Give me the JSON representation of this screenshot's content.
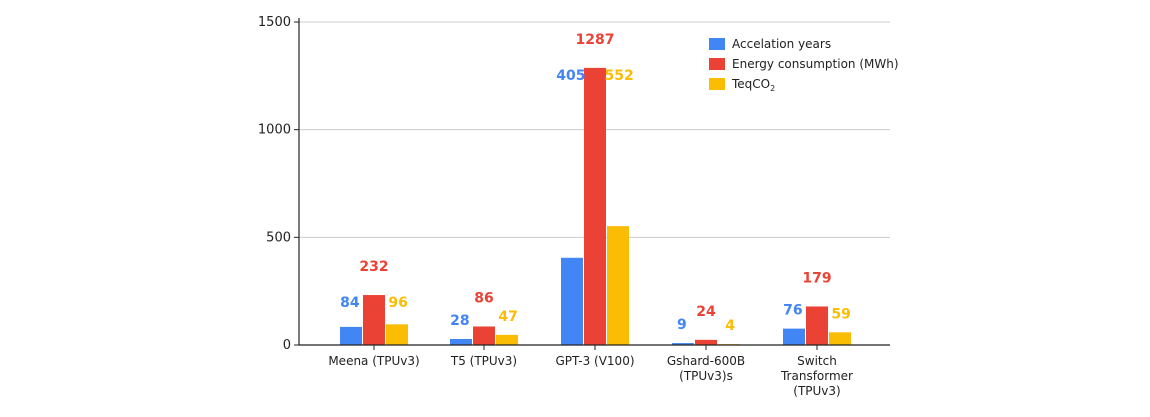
{
  "chart_data": {
    "type": "bar",
    "categories": [
      [
        "Meena (TPUv3)"
      ],
      [
        "T5 (TPUv3)"
      ],
      [
        "GPT-3 (V100)"
      ],
      [
        "Gshard-600B",
        "(TPUv3)s"
      ],
      [
        "Switch",
        "Transformer",
        "(TPUv3)"
      ]
    ],
    "series": [
      {
        "name": "Accelation years",
        "color": "#4285f4",
        "values": [
          84,
          28,
          405,
          9,
          76
        ]
      },
      {
        "name": "Energy consumption (MWh)",
        "color": "#ea4335",
        "values": [
          232,
          86,
          1287,
          24,
          179
        ]
      },
      {
        "name": "TeqCO",
        "name_sub": "2",
        "color": "#fbbc04",
        "values": [
          96,
          47,
          552,
          4,
          59
        ]
      }
    ],
    "ylim": [
      0,
      1500
    ],
    "yticks": [
      0,
      500,
      1000,
      1500
    ],
    "grid": true,
    "legend_position": "top-right",
    "xlabel": "",
    "ylabel": ""
  }
}
